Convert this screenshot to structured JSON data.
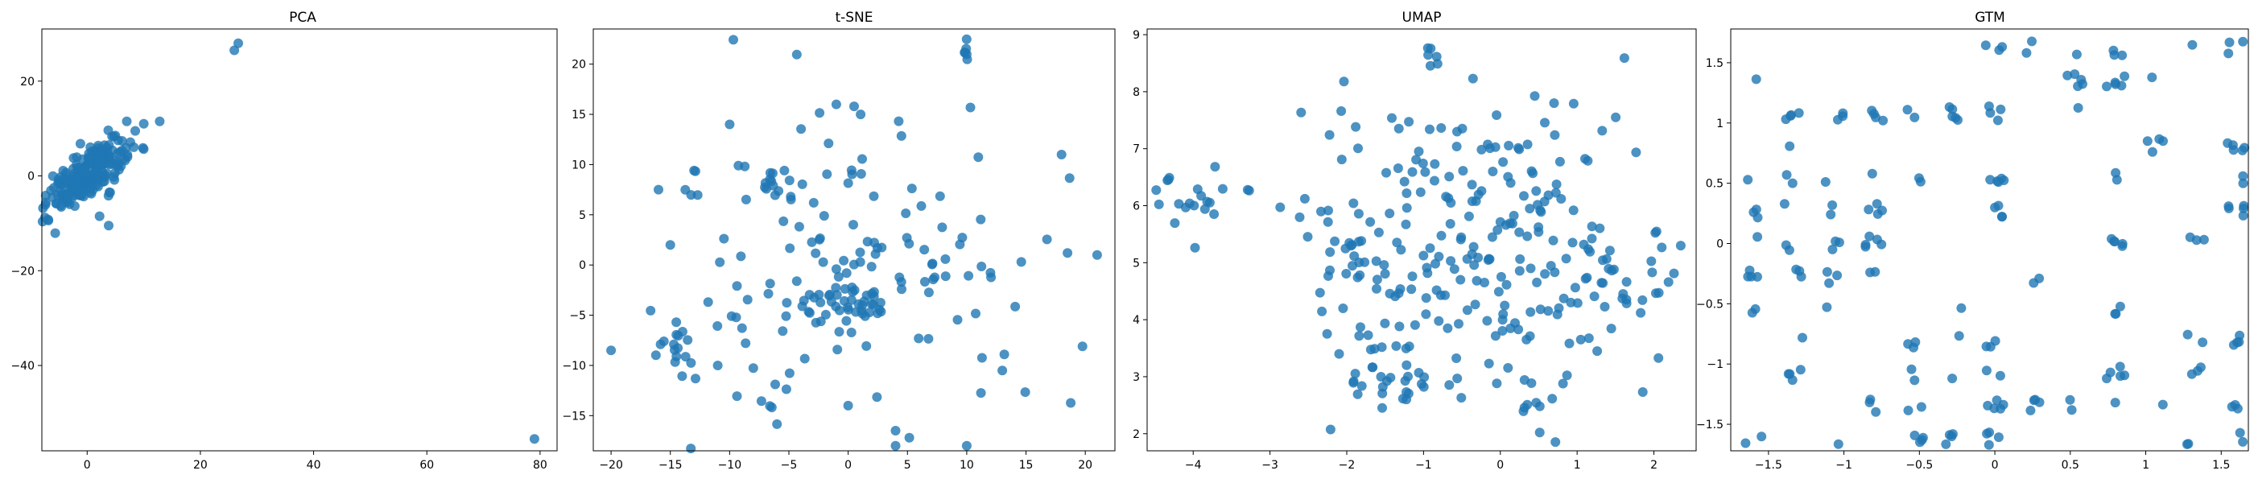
{
  "colors": {
    "marker": "#1f77b4",
    "marker_alpha": 0.8,
    "axes": "#000000",
    "background": "#ffffff"
  },
  "chart_data": [
    {
      "type": "scatter",
      "title": "PCA",
      "xlabel": "",
      "ylabel": "",
      "xlim": [
        -8,
        83
      ],
      "ylim": [
        -58,
        31
      ],
      "xticks": [
        0,
        20,
        40,
        60,
        80
      ],
      "yticks": [
        -40,
        -20,
        0,
        20
      ],
      "clusters": [
        {
          "shape": "wedge",
          "center": [
            0,
            0
          ],
          "spread": [
            5,
            6
          ],
          "n": 240
        },
        {
          "shape": "points",
          "points": [
            [
              26,
              26.5
            ],
            [
              26.7,
              28
            ]
          ]
        },
        {
          "shape": "points",
          "points": [
            [
              79,
              -55.5
            ]
          ]
        },
        {
          "shape": "points",
          "points": [
            [
              3.8,
              -10.5
            ],
            [
              2.2,
              -8.5
            ],
            [
              8.5,
              9.5
            ],
            [
              10,
              11
            ],
            [
              7,
              11.5
            ]
          ]
        }
      ]
    },
    {
      "type": "scatter",
      "title": "t-SNE",
      "xlabel": "",
      "ylabel": "",
      "xlim": [
        -21.5,
        22.5
      ],
      "ylim": [
        -18.5,
        23.5
      ],
      "xticks": [
        -20,
        -15,
        -10,
        -5,
        0,
        5,
        10,
        15,
        20
      ],
      "yticks": [
        -15,
        -10,
        -5,
        0,
        5,
        10,
        15,
        20
      ],
      "clusters": [
        {
          "center": [
            0,
            0
          ],
          "spread": [
            9,
            8
          ],
          "n": 150
        },
        {
          "center": [
            0.8,
            -3.5
          ],
          "spread": [
            2,
            1.2
          ],
          "n": 30
        },
        {
          "center": [
            -14.5,
            -9
          ],
          "spread": [
            1,
            1.5
          ],
          "n": 14
        },
        {
          "center": [
            -6.5,
            8
          ],
          "spread": [
            1.5,
            1
          ],
          "n": 12
        },
        {
          "center": [
            10,
            21.2
          ],
          "spread": [
            0.2,
            0.7
          ],
          "n": 6
        },
        {
          "shape": "points",
          "points": [
            [
              -20,
              -8.5
            ],
            [
              18,
              11
            ],
            [
              21,
              1
            ],
            [
              18.5,
              1.2
            ],
            [
              13,
              -10.5
            ],
            [
              10,
              -18
            ],
            [
              4,
              -18
            ],
            [
              -16,
              7.5
            ],
            [
              -10,
              14
            ],
            [
              -15,
              2
            ],
            [
              -11,
              -10
            ],
            [
              0,
              -14
            ],
            [
              4,
              -16.5
            ],
            [
              -1,
              16
            ],
            [
              0.5,
              15.8
            ]
          ]
        }
      ]
    },
    {
      "type": "scatter",
      "title": "UMAP",
      "xlabel": "",
      "ylabel": "",
      "xlim": [
        -4.6,
        2.55
      ],
      "ylim": [
        1.7,
        9.1
      ],
      "xticks": [
        -4,
        -3,
        -2,
        -1,
        0,
        1,
        2
      ],
      "yticks": [
        2,
        3,
        4,
        5,
        6,
        7,
        8,
        9
      ],
      "clusters": [
        {
          "center": [
            -0.2,
            5.3
          ],
          "spread": [
            1.3,
            1.3
          ],
          "n": 260
        },
        {
          "center": [
            -4.0,
            6.2
          ],
          "spread": [
            0.25,
            0.28
          ],
          "n": 18
        },
        {
          "center": [
            -1.4,
            3.0
          ],
          "spread": [
            0.25,
            0.3
          ],
          "n": 22
        },
        {
          "center": [
            -2.0,
            5.4
          ],
          "spread": [
            0.2,
            0.4
          ],
          "n": 12
        },
        {
          "center": [
            -0.85,
            8.65
          ],
          "spread": [
            0.1,
            0.15
          ],
          "n": 6
        },
        {
          "center": [
            0.5,
            2.1
          ],
          "spread": [
            0.2,
            0.25
          ],
          "n": 8
        },
        {
          "center": [
            1.7,
            4.5
          ],
          "spread": [
            0.25,
            0.3
          ],
          "n": 10
        },
        {
          "shape": "points",
          "points": [
            [
              2.35,
              5.3
            ],
            [
              0.7,
              7.8
            ],
            [
              -2.1,
              3.4
            ]
          ]
        }
      ]
    },
    {
      "type": "scatter",
      "title": "GTM",
      "xlabel": "",
      "ylabel": "",
      "xlim": [
        -1.75,
        1.68
      ],
      "ylim": [
        -1.72,
        1.78
      ],
      "xticks": [
        -1.5,
        -1.0,
        -0.5,
        0.0,
        0.5,
        1.0,
        1.5
      ],
      "yticks": [
        -1.5,
        -1.0,
        -0.5,
        0.0,
        0.5,
        1.0,
        1.5
      ],
      "grid_layout": {
        "x_range": [
          -1.6,
          1.6
        ],
        "y_range": [
          -1.62,
          1.62
        ],
        "nodes_x": 13,
        "nodes_y": 13,
        "fill_prob": 0.45,
        "per_node": [
          1,
          5
        ],
        "jitter": 0.06
      }
    }
  ]
}
